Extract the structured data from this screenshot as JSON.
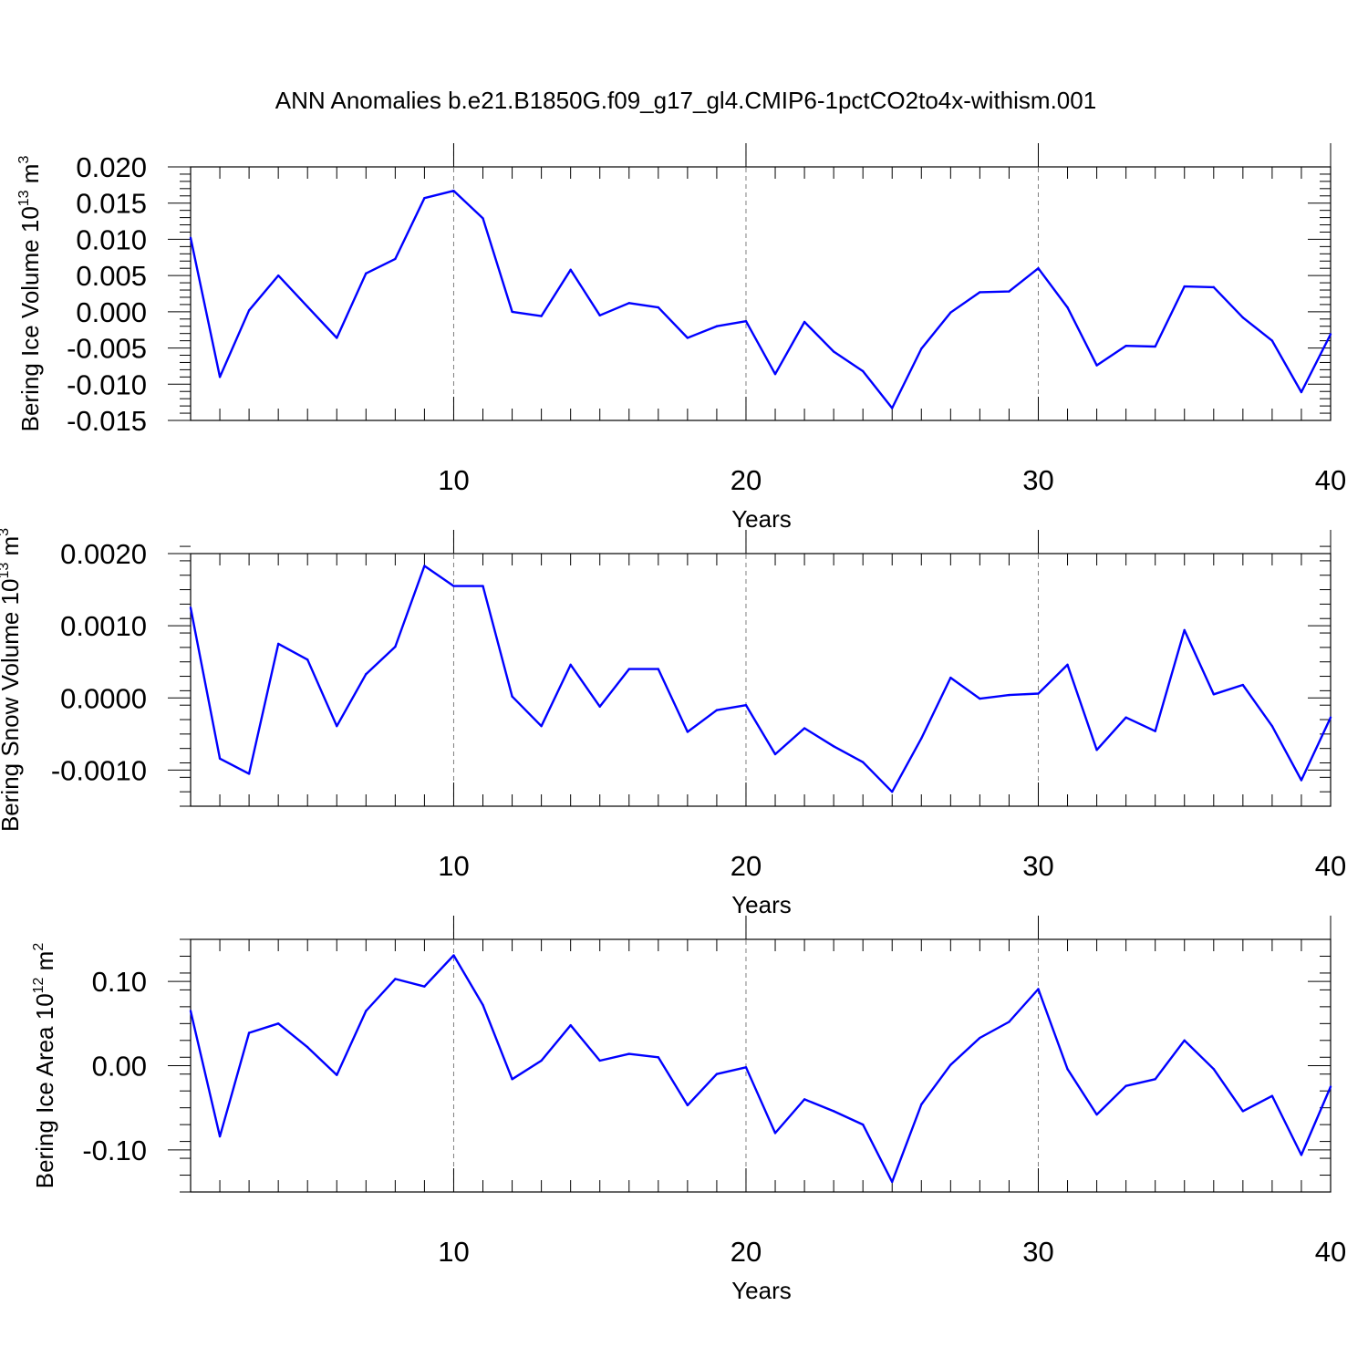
{
  "figure": {
    "title": "ANN Anomalies b.e21.B1850G.f09_g17_gl4.CMIP6-1pctCO2to4x-withism.001",
    "line_color": "#0000ff",
    "gridline_color": "#808080"
  },
  "chart_data": [
    {
      "type": "line",
      "title": "",
      "xlabel": "Years",
      "ylabel": {
        "text": "Bering Ice Volume 10",
        "sup": "13",
        "unit": " m",
        "unit_sup": "3"
      },
      "xlim": [
        1,
        40
      ],
      "ylim": [
        -0.015,
        0.02
      ],
      "x_ticks": [
        10,
        20,
        30,
        40
      ],
      "x_tick_labels": [
        "10",
        "20",
        "30",
        "40"
      ],
      "y_ticks": [
        -0.015,
        -0.01,
        -0.005,
        0.0,
        0.005,
        0.01,
        0.015,
        0.02
      ],
      "y_tick_labels": [
        "-0.015",
        "-0.010",
        "-0.005",
        "0.000",
        "0.005",
        "0.010",
        "0.015",
        "0.020"
      ],
      "y_minor_step": 0.001,
      "grid": "dashed vertical at x major ticks",
      "x": [
        1,
        2,
        3,
        4,
        5,
        6,
        7,
        8,
        9,
        10,
        11,
        12,
        13,
        14,
        15,
        16,
        17,
        18,
        19,
        20,
        21,
        22,
        23,
        24,
        25,
        26,
        27,
        28,
        29,
        30,
        31,
        32,
        33,
        34,
        35,
        36,
        37,
        38,
        39,
        40
      ],
      "values": [
        0.0102,
        -0.009,
        0.0002,
        0.005,
        0.0007,
        -0.0036,
        0.0053,
        0.0073,
        0.0157,
        0.0167,
        0.0129,
        0.0,
        -0.0006,
        0.0058,
        -0.0005,
        0.0012,
        0.0006,
        -0.0036,
        -0.002,
        -0.0013,
        -0.0086,
        -0.0014,
        -0.0055,
        -0.0082,
        -0.0133,
        -0.0051,
        -0.0001,
        0.0027,
        0.0028,
        0.006,
        0.0006,
        -0.0074,
        -0.0047,
        -0.0048,
        0.0035,
        0.0034,
        -0.0008,
        -0.004,
        -0.0111,
        -0.0031
      ]
    },
    {
      "type": "line",
      "title": "",
      "xlabel": "Years",
      "ylabel": {
        "text": "Bering Snow Volume 10",
        "sup": "13",
        "unit": " m",
        "unit_sup": "3"
      },
      "xlim": [
        1,
        40
      ],
      "ylim": [
        -0.0015,
        0.002
      ],
      "x_ticks": [
        10,
        20,
        30,
        40
      ],
      "x_tick_labels": [
        "10",
        "20",
        "30",
        "40"
      ],
      "y_ticks": [
        -0.001,
        0.0,
        0.001,
        0.002
      ],
      "y_tick_labels": [
        "-0.0010",
        "0.0000",
        "0.0010",
        "0.0020"
      ],
      "y_minor_step": 0.0002,
      "grid": "dashed vertical at x major ticks",
      "x": [
        1,
        2,
        3,
        4,
        5,
        6,
        7,
        8,
        9,
        10,
        11,
        12,
        13,
        14,
        15,
        16,
        17,
        18,
        19,
        20,
        21,
        22,
        23,
        24,
        25,
        26,
        27,
        28,
        29,
        30,
        31,
        32,
        33,
        34,
        35,
        36,
        37,
        38,
        39,
        40
      ],
      "values": [
        0.00125,
        -0.00084,
        -0.00105,
        0.00075,
        0.00053,
        -0.00039,
        0.00033,
        0.00071,
        0.00183,
        0.00155,
        0.00155,
        2e-05,
        -0.00039,
        0.00046,
        -0.00012,
        0.0004,
        0.0004,
        -0.00047,
        -0.00017,
        -0.0001,
        -0.00078,
        -0.00042,
        -0.00067,
        -0.00089,
        -0.0013,
        -0.00056,
        0.00028,
        -1e-05,
        4e-05,
        6e-05,
        0.00046,
        -0.00072,
        -0.00027,
        -0.00046,
        0.00094,
        5e-05,
        0.00018,
        -0.00039,
        -0.00114,
        -0.00027
      ]
    },
    {
      "type": "line",
      "title": "",
      "xlabel": "Years",
      "ylabel": {
        "text": "Bering Ice Area 10",
        "sup": "12",
        "unit": " m",
        "unit_sup": "2"
      },
      "xlim": [
        1,
        40
      ],
      "ylim": [
        -0.15,
        0.15
      ],
      "x_ticks": [
        10,
        20,
        30,
        40
      ],
      "x_tick_labels": [
        "10",
        "20",
        "30",
        "40"
      ],
      "y_ticks": [
        -0.1,
        0.0,
        0.1
      ],
      "y_tick_labels": [
        "-0.10",
        "0.00",
        "0.10"
      ],
      "y_minor_step": 0.02,
      "grid": "dashed vertical at x major ticks",
      "x": [
        1,
        2,
        3,
        4,
        5,
        6,
        7,
        8,
        9,
        10,
        11,
        12,
        13,
        14,
        15,
        16,
        17,
        18,
        19,
        20,
        21,
        22,
        23,
        24,
        25,
        26,
        27,
        28,
        29,
        30,
        31,
        32,
        33,
        34,
        35,
        36,
        37,
        38,
        39,
        40
      ],
      "values": [
        0.065,
        -0.084,
        0.039,
        0.05,
        0.022,
        -0.011,
        0.065,
        0.103,
        0.094,
        0.131,
        0.072,
        -0.016,
        0.006,
        0.048,
        0.006,
        0.014,
        0.01,
        -0.047,
        -0.01,
        -0.002,
        -0.08,
        -0.04,
        -0.054,
        -0.07,
        -0.138,
        -0.046,
        0.001,
        0.033,
        0.052,
        0.091,
        -0.004,
        -0.058,
        -0.024,
        -0.016,
        0.03,
        -0.004,
        -0.054,
        -0.036,
        -0.106,
        -0.025
      ]
    }
  ]
}
